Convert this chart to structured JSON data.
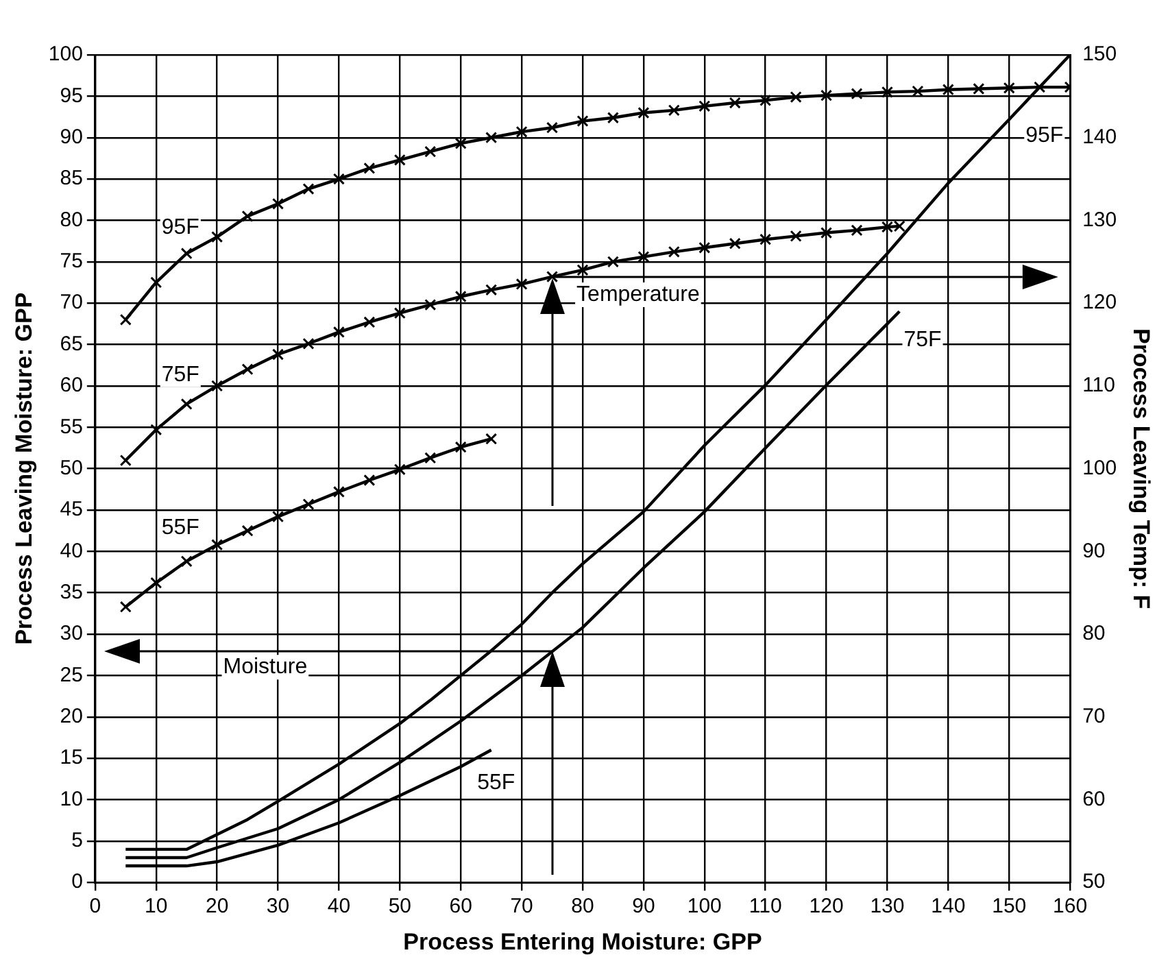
{
  "chart_data": {
    "type": "line",
    "xlabel": "Process Entering Moisture: GPP",
    "ylabel": "Process Leaving Moisture: GPP",
    "y2label": "Process Leaving Temp: F",
    "xlim": [
      0,
      160
    ],
    "xticks": [
      0,
      10,
      20,
      30,
      40,
      50,
      60,
      70,
      80,
      90,
      100,
      110,
      120,
      130,
      140,
      150,
      160
    ],
    "ylim": [
      0,
      100
    ],
    "yticks": [
      0,
      5,
      10,
      15,
      20,
      25,
      30,
      35,
      40,
      45,
      50,
      55,
      60,
      65,
      70,
      75,
      80,
      85,
      90,
      95,
      100
    ],
    "y2lim": [
      50,
      150
    ],
    "y2ticks": [
      50,
      60,
      70,
      80,
      90,
      100,
      110,
      120,
      130,
      140,
      150
    ],
    "grid": true,
    "legend": false,
    "series": [
      {
        "name": "95F",
        "color": "#000000",
        "axis": "y2",
        "marker": "cross",
        "x": [
          5,
          10,
          15,
          20,
          25,
          30,
          35,
          40,
          45,
          50,
          55,
          60,
          65,
          70,
          75,
          80,
          85,
          90,
          95,
          100,
          105,
          110,
          115,
          120,
          125,
          130,
          135,
          140,
          145,
          150,
          155,
          160
        ],
        "values": [
          118,
          122.5,
          126,
          128,
          130.5,
          132,
          133.8,
          135,
          136.3,
          137.3,
          138.3,
          139.3,
          140,
          140.7,
          141.2,
          142,
          142.4,
          143,
          143.3,
          143.8,
          144.2,
          144.5,
          144.9,
          145.1,
          145.3,
          145.5,
          145.6,
          145.8,
          145.9,
          146,
          146.1,
          146.1
        ]
      },
      {
        "name": "75F",
        "color": "#000000",
        "axis": "y2",
        "marker": "cross",
        "x": [
          5,
          10,
          15,
          20,
          25,
          30,
          35,
          40,
          45,
          50,
          55,
          60,
          65,
          70,
          75,
          80,
          85,
          90,
          95,
          100,
          105,
          110,
          115,
          120,
          125,
          130,
          132
        ],
        "values": [
          101,
          104.7,
          107.8,
          110,
          112,
          113.8,
          115.1,
          116.5,
          117.7,
          118.8,
          119.8,
          120.8,
          121.6,
          122.3,
          123.2,
          124,
          125,
          125.6,
          126.2,
          126.7,
          127.2,
          127.7,
          128.1,
          128.5,
          128.8,
          129.2,
          129.3
        ]
      },
      {
        "name": "55F",
        "color": "#000000",
        "axis": "y2",
        "marker": "cross",
        "x": [
          5,
          10,
          15,
          20,
          25,
          30,
          35,
          40,
          45,
          50,
          55,
          60,
          65
        ],
        "values": [
          83.3,
          86.2,
          88.8,
          90.8,
          92.5,
          94.2,
          95.7,
          97.2,
          98.6,
          99.9,
          101.3,
          102.6,
          103.6
        ]
      },
      {
        "name": "95F",
        "color": "#000000",
        "marker": "none",
        "x": [
          5,
          15,
          20,
          25,
          30,
          40,
          50,
          55,
          60,
          65,
          70,
          75,
          80,
          90,
          100,
          110,
          120,
          130,
          140,
          150,
          160
        ],
        "values": [
          4,
          4,
          5.8,
          7.6,
          9.8,
          14.3,
          19.2,
          22,
          25,
          28,
          31.2,
          35,
          38.5,
          44.8,
          52.8,
          60.1,
          68,
          76,
          84.5,
          92.2,
          100
        ]
      },
      {
        "name": "75F",
        "color": "#000000",
        "marker": "none",
        "x": [
          5,
          15,
          20,
          30,
          40,
          50,
          60,
          70,
          80,
          90,
          100,
          110,
          120,
          130,
          132
        ],
        "values": [
          3,
          3,
          4.2,
          6.5,
          10,
          14.5,
          19.5,
          25,
          30.8,
          38,
          44.8,
          52.5,
          60.1,
          67.5,
          69
        ]
      },
      {
        "name": "55F",
        "color": "#000000",
        "marker": "none",
        "x": [
          5,
          15,
          20,
          30,
          40,
          50,
          60,
          65
        ],
        "values": [
          2,
          2,
          2.5,
          4.5,
          7.2,
          10.5,
          14,
          16
        ]
      }
    ],
    "annotations": [
      "Temperature",
      "Moisture"
    ]
  }
}
